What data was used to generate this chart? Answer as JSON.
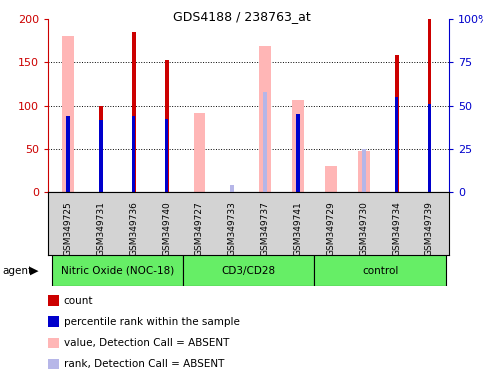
{
  "title": "GDS4188 / 238763_at",
  "samples": [
    "GSM349725",
    "GSM349731",
    "GSM349736",
    "GSM349740",
    "GSM349727",
    "GSM349733",
    "GSM349737",
    "GSM349741",
    "GSM349729",
    "GSM349730",
    "GSM349734",
    "GSM349739"
  ],
  "groups": [
    {
      "label": "Nitric Oxide (NOC-18)",
      "start": 0,
      "end": 4
    },
    {
      "label": "CD3/CD28",
      "start": 4,
      "end": 8
    },
    {
      "label": "control",
      "start": 8,
      "end": 12
    }
  ],
  "count_values": [
    null,
    100,
    185,
    153,
    null,
    null,
    null,
    null,
    null,
    null,
    158,
    200
  ],
  "percentile_values": [
    88,
    83,
    88,
    84,
    null,
    null,
    null,
    90,
    null,
    null,
    110,
    102
  ],
  "absent_value_values": [
    181,
    null,
    null,
    null,
    91,
    null,
    169,
    107,
    30,
    48,
    null,
    null
  ],
  "absent_rank_values": [
    null,
    null,
    null,
    null,
    null,
    8,
    116,
    null,
    null,
    50,
    null,
    null
  ],
  "ylim": [
    0,
    200
  ],
  "y2lim": [
    0,
    100
  ],
  "yticks": [
    0,
    50,
    100,
    150,
    200
  ],
  "y2ticks": [
    0,
    25,
    50,
    75,
    100
  ],
  "y2ticklabels": [
    "0",
    "25",
    "50",
    "75",
    "100%"
  ],
  "count_color": "#cc0000",
  "percentile_color": "#0000cc",
  "absent_value_color": "#ffb6b6",
  "absent_rank_color": "#b6b6e8",
  "group_color": "#66ee66",
  "group_edge_color": "#000000",
  "xtick_bg_color": "#d3d3d3",
  "background_color": "#ffffff"
}
